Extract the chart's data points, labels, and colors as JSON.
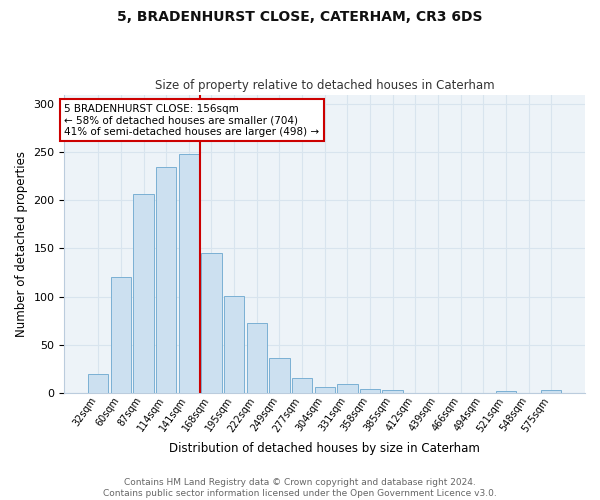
{
  "title1": "5, BRADENHURST CLOSE, CATERHAM, CR3 6DS",
  "title2": "Size of property relative to detached houses in Caterham",
  "xlabel": "Distribution of detached houses by size in Caterham",
  "ylabel": "Number of detached properties",
  "footer1": "Contains HM Land Registry data © Crown copyright and database right 2024.",
  "footer2": "Contains public sector information licensed under the Open Government Licence v3.0.",
  "annotation_line1": "5 BRADENHURST CLOSE: 156sqm",
  "annotation_line2": "← 58% of detached houses are smaller (704)",
  "annotation_line3": "41% of semi-detached houses are larger (498) →",
  "bar_labels": [
    "32sqm",
    "60sqm",
    "87sqm",
    "114sqm",
    "141sqm",
    "168sqm",
    "195sqm",
    "222sqm",
    "249sqm",
    "277sqm",
    "304sqm",
    "331sqm",
    "358sqm",
    "385sqm",
    "412sqm",
    "439sqm",
    "466sqm",
    "494sqm",
    "521sqm",
    "548sqm",
    "575sqm"
  ],
  "bar_values": [
    20,
    120,
    207,
    235,
    248,
    145,
    101,
    73,
    36,
    15,
    6,
    9,
    4,
    3,
    0,
    0,
    0,
    0,
    2,
    0,
    3
  ],
  "bar_color": "#cce0f0",
  "bar_edge_color": "#7ab0d4",
  "vline_x_index": 4.5,
  "vline_color": "#cc0000",
  "ylim": [
    0,
    310
  ],
  "yticks": [
    0,
    50,
    100,
    150,
    200,
    250,
    300
  ],
  "grid_color": "#d8e4ee",
  "bg_color": "#edf3f8",
  "annotation_box_edge": "#cc0000",
  "title1_fontsize": 10,
  "title2_fontsize": 8.5,
  "xlabel_fontsize": 8.5,
  "ylabel_fontsize": 8.5,
  "xtick_fontsize": 7,
  "ytick_fontsize": 8,
  "footer_fontsize": 6.5,
  "annot_fontsize": 7.5
}
